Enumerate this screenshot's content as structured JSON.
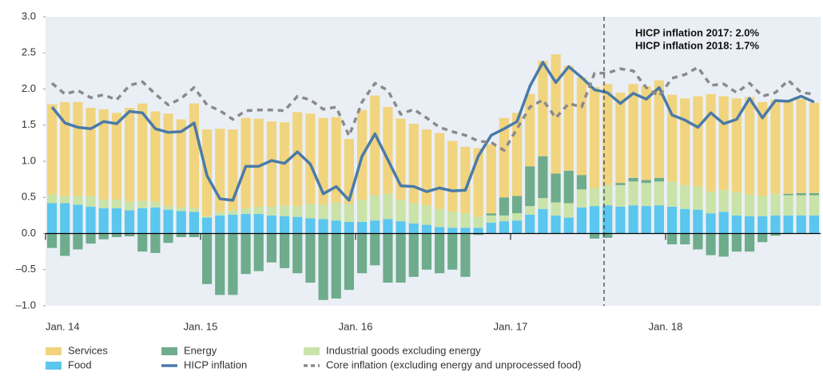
{
  "chart_data": {
    "type": "bar",
    "annotations": [
      "HICP inflation 2017: 2.0%",
      "HICP inflation 2018: 1.7%"
    ],
    "categories": [
      "Jan. 14",
      null,
      null,
      null,
      null,
      null,
      null,
      null,
      null,
      null,
      null,
      null,
      "Jan. 15",
      null,
      null,
      null,
      null,
      null,
      null,
      null,
      null,
      null,
      null,
      null,
      "Jan. 16",
      null,
      null,
      null,
      null,
      null,
      null,
      null,
      null,
      null,
      null,
      null,
      "Jan. 17",
      null,
      null,
      null,
      null,
      null,
      null,
      null,
      null,
      null,
      null,
      null,
      "Jan. 18",
      null,
      null,
      null,
      null,
      null,
      null,
      null,
      null,
      null,
      null,
      null
    ],
    "ylim": [
      -1.0,
      3.0
    ],
    "yticks": [
      {
        "value": -1.0,
        "label": "–1.0"
      },
      {
        "value": -0.5,
        "label": "–0.5"
      },
      {
        "value": 0.0,
        "label": "0.0"
      },
      0.5,
      {
        "value": 1.0,
        "label": "1.0"
      },
      1.5,
      {
        "value": 2.0,
        "label": "2.0"
      },
      2.5,
      {
        "value": 3.0,
        "label": "3.0"
      }
    ],
    "series": [
      {
        "name": "Food",
        "type": "bar",
        "color": "#5bc6ee",
        "values": [
          0.42,
          0.42,
          0.4,
          0.37,
          0.35,
          0.35,
          0.32,
          0.35,
          0.36,
          0.33,
          0.31,
          0.3,
          0.22,
          0.25,
          0.26,
          0.27,
          0.27,
          0.25,
          0.24,
          0.23,
          0.21,
          0.2,
          0.18,
          0.16,
          0.16,
          0.18,
          0.2,
          0.17,
          0.14,
          0.12,
          0.09,
          0.08,
          0.08,
          0.08,
          0.15,
          0.17,
          0.18,
          0.26,
          0.34,
          0.25,
          0.22,
          0.36,
          0.38,
          0.39,
          0.37,
          0.39,
          0.38,
          0.39,
          0.37,
          0.34,
          0.33,
          0.28,
          0.3,
          0.25,
          0.24,
          0.24,
          0.25,
          0.25,
          0.25,
          0.25
        ]
      },
      {
        "name": "Industrial goods excluding energy",
        "type": "bar",
        "color": "#c9e3a8",
        "values": [
          0.12,
          0.1,
          0.12,
          0.15,
          0.12,
          0.12,
          0.12,
          0.1,
          0.08,
          0.05,
          0.05,
          0.05,
          0.02,
          0.05,
          0.06,
          0.08,
          0.1,
          0.12,
          0.15,
          0.15,
          0.2,
          0.2,
          0.25,
          0.25,
          0.3,
          0.35,
          0.35,
          0.3,
          0.28,
          0.27,
          0.25,
          0.22,
          0.2,
          0.15,
          0.1,
          0.08,
          0.1,
          0.12,
          0.15,
          0.18,
          0.2,
          0.25,
          0.25,
          0.28,
          0.3,
          0.33,
          0.32,
          0.33,
          0.35,
          0.33,
          0.32,
          0.3,
          0.3,
          0.32,
          0.3,
          0.28,
          0.3,
          0.28,
          0.28,
          0.28
        ]
      },
      {
        "name": "Energy",
        "type": "bar",
        "color": "#6eac8c",
        "values": [
          -0.2,
          -0.31,
          -0.22,
          -0.14,
          -0.08,
          -0.05,
          -0.04,
          -0.25,
          -0.27,
          -0.13,
          -0.05,
          -0.05,
          -0.7,
          -0.85,
          -0.85,
          -0.56,
          -0.52,
          -0.4,
          -0.48,
          -0.55,
          -0.68,
          -0.92,
          -0.9,
          -0.78,
          -0.55,
          -0.44,
          -0.68,
          -0.68,
          -0.6,
          -0.5,
          -0.55,
          -0.5,
          -0.6,
          -0.02,
          0.03,
          0.25,
          0.24,
          0.55,
          0.58,
          0.4,
          0.45,
          0.2,
          -0.07,
          -0.06,
          0.03,
          0.05,
          0.04,
          0.05,
          -0.15,
          -0.15,
          -0.22,
          -0.3,
          -0.32,
          -0.25,
          -0.25,
          -0.12,
          -0.03,
          0.02,
          0.03,
          0.03
        ]
      },
      {
        "name": "Services",
        "type": "bar",
        "color": "#f1d47e",
        "values": [
          1.25,
          1.3,
          1.3,
          1.22,
          1.25,
          1.2,
          1.3,
          1.35,
          1.25,
          1.28,
          1.22,
          1.45,
          1.2,
          1.15,
          1.12,
          1.25,
          1.22,
          1.18,
          1.15,
          1.3,
          1.25,
          1.2,
          1.18,
          0.9,
          1.25,
          1.38,
          1.2,
          1.12,
          1.1,
          1.05,
          1.05,
          0.98,
          0.92,
          0.95,
          0.95,
          1.1,
          1.15,
          1.0,
          1.32,
          1.65,
          1.45,
          1.35,
          1.4,
          1.4,
          1.25,
          1.3,
          1.3,
          1.35,
          1.2,
          1.2,
          1.25,
          1.35,
          1.3,
          1.3,
          1.35,
          1.3,
          1.3,
          1.3,
          1.3,
          1.25
        ]
      },
      {
        "name": "HICP inflation",
        "type": "line",
        "color": "#4a7aa8",
        "values": [
          1.75,
          1.53,
          1.47,
          1.45,
          1.55,
          1.52,
          1.69,
          1.67,
          1.45,
          1.4,
          1.41,
          1.53,
          0.8,
          0.48,
          0.46,
          0.93,
          0.93,
          1.01,
          0.97,
          1.13,
          0.96,
          0.55,
          0.65,
          0.46,
          1.07,
          1.38,
          1.02,
          0.66,
          0.65,
          0.58,
          0.63,
          0.59,
          0.6,
          1.07,
          1.36,
          1.45,
          1.55,
          2.04,
          2.37,
          2.09,
          2.31,
          2.16,
          1.99,
          1.95,
          1.8,
          1.94,
          1.86,
          2.02,
          1.64,
          1.57,
          1.47,
          1.67,
          1.52,
          1.58,
          1.87,
          1.6,
          1.84,
          1.83,
          1.9,
          1.82
        ]
      },
      {
        "name": "Core inflation (excluding energy and unprocessed food)",
        "type": "line",
        "dashed": true,
        "color": "#8a8a8a",
        "values": [
          2.08,
          1.93,
          1.98,
          1.88,
          1.92,
          1.85,
          2.05,
          2.1,
          1.93,
          1.78,
          1.87,
          2.02,
          1.78,
          1.7,
          1.58,
          1.7,
          1.71,
          1.71,
          1.7,
          1.9,
          1.85,
          1.72,
          1.75,
          1.35,
          1.82,
          2.08,
          1.98,
          1.65,
          1.72,
          1.6,
          1.47,
          1.41,
          1.36,
          1.28,
          1.26,
          1.15,
          1.45,
          1.75,
          1.85,
          1.6,
          1.8,
          1.75,
          2.22,
          2.22,
          2.28,
          2.25,
          2.02,
          1.9,
          2.15,
          2.2,
          2.3,
          2.05,
          2.07,
          1.95,
          2.08,
          1.9,
          1.95,
          2.12,
          1.95,
          1.93
        ]
      }
    ]
  }
}
